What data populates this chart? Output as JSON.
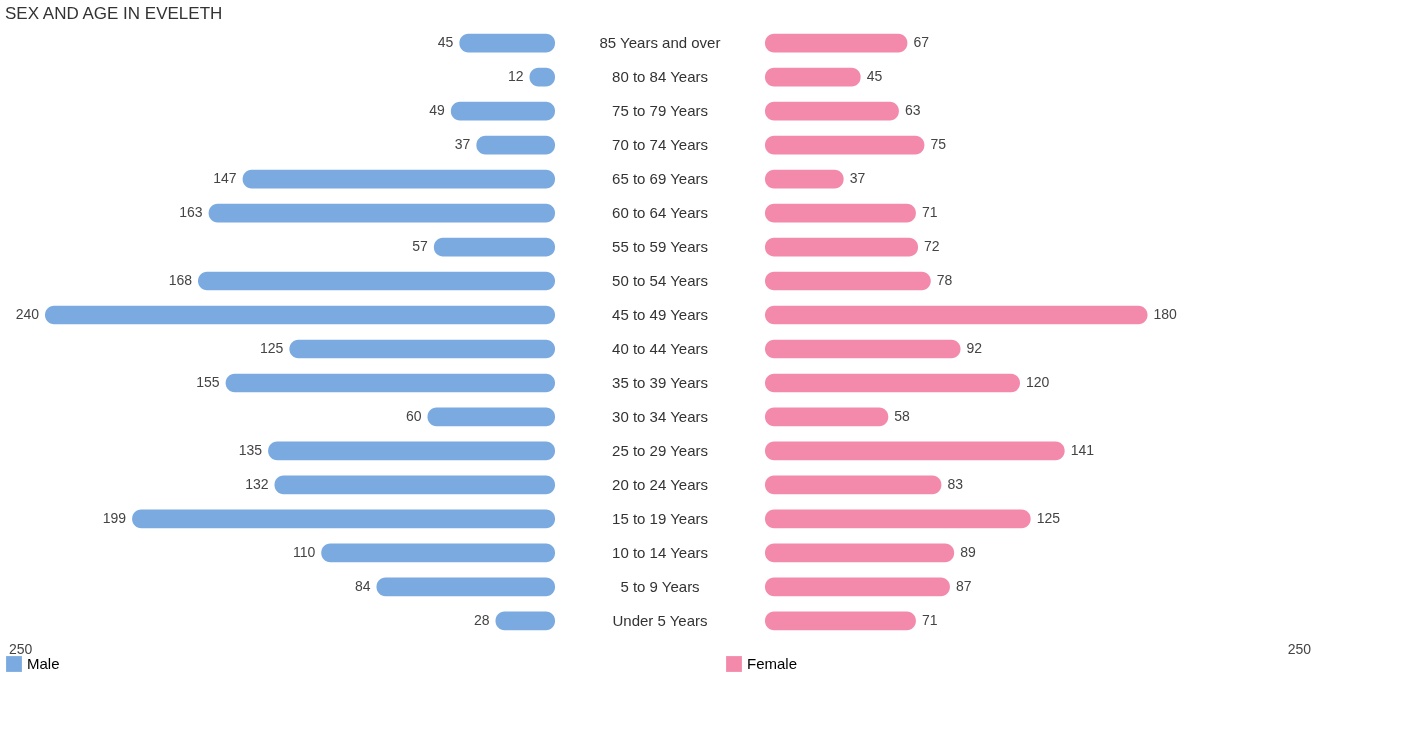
{
  "chart_data": [
    {
      "type": "bar",
      "orientation": "horizontal",
      "title": "SEX AND AGE IN EVELETH",
      "categories": [
        "85 Years and over",
        "80 to 84 Years",
        "75 to 79 Years",
        "70 to 74 Years",
        "65 to 69 Years",
        "60 to 64 Years",
        "55 to 59 Years",
        "50 to 54 Years",
        "45 to 49 Years",
        "40 to 44 Years",
        "35 to 39 Years",
        "30 to 34 Years",
        "25 to 29 Years",
        "20 to 24 Years",
        "15 to 19 Years",
        "10 to 14 Years",
        "5 to 9 Years",
        "Under 5 Years"
      ],
      "series": [
        {
          "name": "Male",
          "color": "#7aaae0",
          "values": [
            45,
            12,
            49,
            37,
            147,
            163,
            57,
            168,
            240,
            125,
            155,
            60,
            135,
            132,
            199,
            110,
            84,
            28
          ]
        }
      ],
      "annotations": [
        "250"
      ],
      "data_labels": true,
      "legend": "bottom"
    },
    {
      "type": "bar",
      "orientation": "horizontal",
      "categories": [
        "85 Years and over",
        "80 to 84 Years",
        "75 to 79 Years",
        "70 to 74 Years",
        "65 to 69 Years",
        "60 to 64 Years",
        "55 to 59 Years",
        "50 to 54 Years",
        "45 to 49 Years",
        "40 to 44 Years",
        "35 to 39 Years",
        "30 to 34 Years",
        "25 to 29 Years",
        "20 to 24 Years",
        "15 to 19 Years",
        "10 to 14 Years",
        "5 to 9 Years",
        "Under 5 Years"
      ],
      "series": [
        {
          "name": "Female",
          "color": "#f48aab",
          "values": [
            67,
            45,
            63,
            75,
            37,
            71,
            72,
            78,
            180,
            92,
            120,
            58,
            141,
            83,
            125,
            89,
            87,
            71
          ]
        }
      ],
      "annotations": [
        "250"
      ],
      "tick_labels": "x",
      "data_labels": true,
      "legend": "bottom"
    }
  ]
}
